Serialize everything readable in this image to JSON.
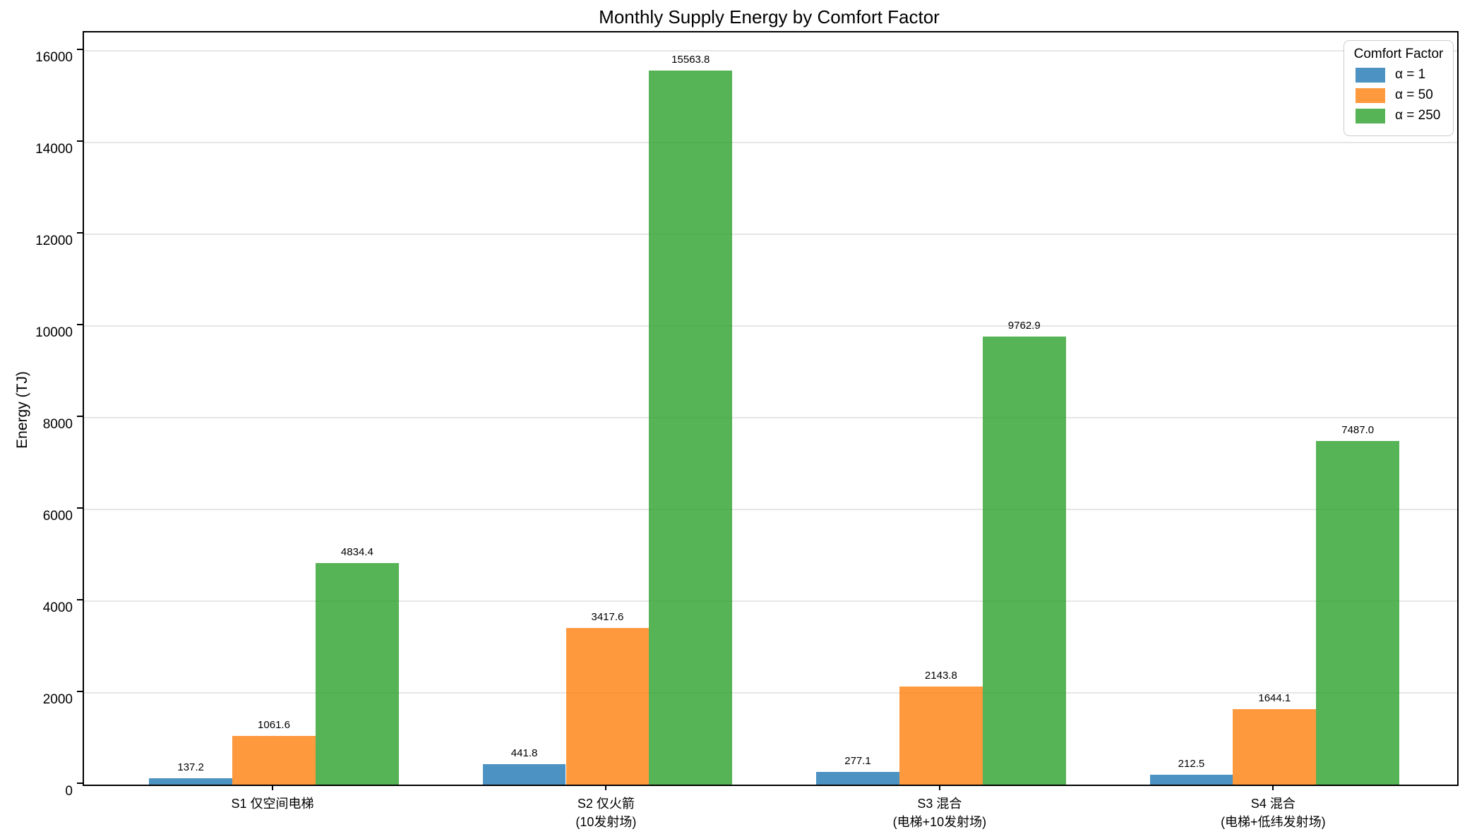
{
  "legend": {
    "title": "Comfort Factor"
  },
  "chart_data": {
    "type": "bar",
    "title": "Monthly Supply Energy by Comfort Factor",
    "xlabel": "",
    "ylabel": "Energy (TJ)",
    "ylim": [
      0,
      16000
    ],
    "yticks": [
      0,
      2000,
      4000,
      6000,
      8000,
      10000,
      12000,
      14000,
      16000
    ],
    "grid": "horizontal",
    "legend_position": "upper right",
    "legend_title": "Comfort Factor",
    "bar_alpha": 0.8,
    "categories": [
      "S1 仅空间电梯",
      "S2 仅火箭\n(10发射场)",
      "S3 混合\n(电梯+10发射场)",
      "S4 混合\n(电梯+低纬发射场)"
    ],
    "series": [
      {
        "name": "α = 1",
        "color": "#1f77b4",
        "values": [
          137.2,
          441.8,
          277.1,
          212.5
        ]
      },
      {
        "name": "α = 50",
        "color": "#ff7f0e",
        "values": [
          1061.6,
          3417.6,
          2143.8,
          1644.1
        ]
      },
      {
        "name": "α = 250",
        "color": "#2ca02c",
        "values": [
          4834.4,
          15563.8,
          9762.9,
          7487.0
        ]
      }
    ],
    "value_labels": [
      [
        "137.2",
        "441.8",
        "277.1",
        "212.5"
      ],
      [
        "1061.6",
        "3417.6",
        "2143.8",
        "1644.1"
      ],
      [
        "4834.4",
        "15563.8",
        "9762.9",
        "7487.0"
      ]
    ]
  }
}
